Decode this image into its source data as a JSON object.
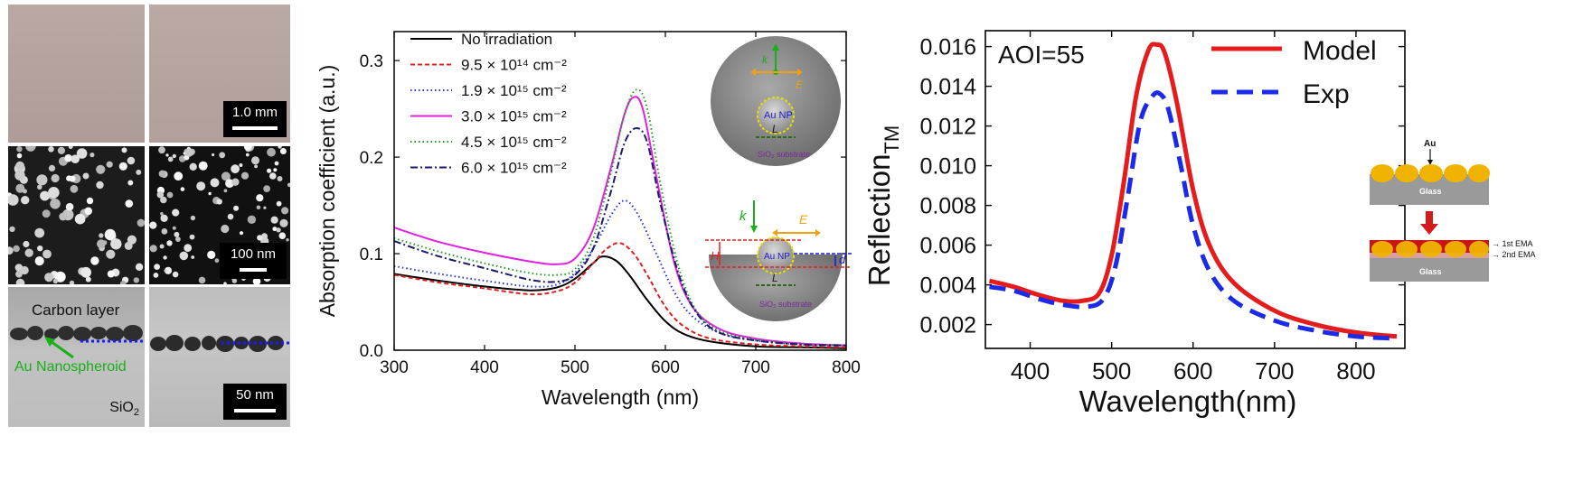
{
  "figure": {
    "panel_a": {
      "scale_bar_1": "1.0 mm",
      "scale_bar_2": "100 nm",
      "scale_bar_3": "50 nm",
      "label_carbon": "Carbon layer",
      "label_au": "Au Nanospheroid",
      "label_sio2": "SiO",
      "label_sio2_sub": "2"
    },
    "panel_b_insets": {
      "top_k": "k",
      "top_e": "E",
      "top_aunp": "Au NP",
      "top_l": "L",
      "top_sub": "SiO₂ substrate",
      "bot_k": "k",
      "bot_e": "E",
      "bot_h": "H",
      "bot_d": "d",
      "bot_aunp": "Au NP",
      "bot_l": "L",
      "bot_sub": "SiO₂ substrate"
    },
    "panel_c_inset": {
      "au": "Au",
      "glass_top": "Glass",
      "glass_bottom": "Glass",
      "ema1": "→ 1st EMA",
      "ema2": "→ 2nd EMA"
    }
  },
  "chart_data": [
    {
      "type": "line",
      "xlabel": "Wavelength (nm)",
      "ylabel": "Absorption coefficient   (a.u.)",
      "xlim": [
        300,
        800
      ],
      "ylim": [
        0,
        0.33
      ],
      "xticks": [
        "300",
        "400",
        "500",
        "600",
        "700",
        "800"
      ],
      "yticks": [
        "0.0",
        "0.1",
        "0.2",
        "0.3"
      ],
      "legend_position": "top-left",
      "series": [
        {
          "name": "No irradiation",
          "color": "#000000",
          "dash": "solid",
          "x": [
            300,
            350,
            400,
            450,
            480,
            500,
            520,
            530,
            545,
            560,
            580,
            600,
            620,
            650,
            700,
            750,
            800
          ],
          "y": [
            0.079,
            0.072,
            0.066,
            0.062,
            0.065,
            0.074,
            0.09,
            0.097,
            0.093,
            0.078,
            0.052,
            0.03,
            0.017,
            0.009,
            0.004,
            0.003,
            0.002
          ]
        },
        {
          "name": "9.5 × 10¹⁴ cm⁻²",
          "color": "#e02020",
          "dash": "dashed",
          "x": [
            300,
            350,
            400,
            450,
            480,
            500,
            520,
            535,
            550,
            565,
            580,
            600,
            620,
            650,
            700,
            750,
            800
          ],
          "y": [
            0.078,
            0.07,
            0.064,
            0.058,
            0.061,
            0.07,
            0.09,
            0.105,
            0.111,
            0.1,
            0.078,
            0.045,
            0.025,
            0.012,
            0.006,
            0.004,
            0.003
          ]
        },
        {
          "name": "1.9 × 10¹⁵ cm⁻²",
          "color": "#2030e0",
          "dash": "dotted",
          "x": [
            300,
            350,
            400,
            450,
            480,
            500,
            520,
            540,
            555,
            570,
            590,
            610,
            630,
            660,
            700,
            750,
            800
          ],
          "y": [
            0.087,
            0.079,
            0.072,
            0.066,
            0.068,
            0.08,
            0.105,
            0.14,
            0.155,
            0.14,
            0.1,
            0.06,
            0.035,
            0.018,
            0.01,
            0.006,
            0.005
          ]
        },
        {
          "name": "3.0 × 10¹⁵ cm⁻²",
          "color": "#e020e0",
          "dash": "solid",
          "x": [
            300,
            350,
            400,
            450,
            480,
            500,
            520,
            540,
            555,
            565,
            575,
            590,
            610,
            630,
            660,
            700,
            750,
            800
          ],
          "y": [
            0.127,
            0.112,
            0.101,
            0.092,
            0.089,
            0.095,
            0.125,
            0.19,
            0.245,
            0.262,
            0.25,
            0.18,
            0.09,
            0.045,
            0.022,
            0.012,
            0.007,
            0.005
          ]
        },
        {
          "name": "4.5 × 10¹⁵ cm⁻²",
          "color": "#1a9a1a",
          "dash": "dotted",
          "x": [
            300,
            350,
            400,
            450,
            480,
            500,
            520,
            540,
            555,
            568,
            580,
            595,
            615,
            635,
            660,
            700,
            750,
            800
          ],
          "y": [
            0.116,
            0.102,
            0.09,
            0.08,
            0.078,
            0.084,
            0.115,
            0.185,
            0.245,
            0.27,
            0.25,
            0.17,
            0.085,
            0.04,
            0.02,
            0.011,
            0.006,
            0.005
          ]
        },
        {
          "name": "6.0 × 10¹⁵ cm⁻²",
          "color": "#1a1a6a",
          "dash": "dashdot",
          "x": [
            300,
            350,
            400,
            450,
            480,
            500,
            520,
            540,
            555,
            568,
            580,
            595,
            615,
            635,
            660,
            700,
            750,
            800
          ],
          "y": [
            0.113,
            0.097,
            0.085,
            0.073,
            0.071,
            0.078,
            0.105,
            0.165,
            0.215,
            0.23,
            0.215,
            0.15,
            0.078,
            0.038,
            0.018,
            0.01,
            0.006,
            0.005
          ]
        }
      ]
    },
    {
      "type": "line",
      "xlabel": "Wavelength(nm)",
      "ylabel": "Reflection",
      "ylabel_sub": "TM",
      "annotation": "AOI=55",
      "xlim": [
        345,
        860
      ],
      "ylim": [
        0.0008,
        0.0168
      ],
      "xticks": [
        "400",
        "500",
        "600",
        "700",
        "800"
      ],
      "yticks": [
        "0.002",
        "0.004",
        "0.006",
        "0.008",
        "0.010",
        "0.012",
        "0.014",
        "0.016"
      ],
      "legend_position": "top-right",
      "series": [
        {
          "name": "Model",
          "color": "#e51c1c",
          "dash": "solid",
          "x": [
            350,
            380,
            410,
            440,
            465,
            485,
            500,
            515,
            530,
            545,
            555,
            565,
            580,
            600,
            620,
            650,
            700,
            750,
            800,
            850
          ],
          "y": [
            0.0042,
            0.0039,
            0.0035,
            0.0032,
            0.0032,
            0.0036,
            0.0055,
            0.0092,
            0.0135,
            0.0158,
            0.0161,
            0.0157,
            0.0132,
            0.0088,
            0.006,
            0.0041,
            0.0027,
            0.002,
            0.0016,
            0.0014
          ]
        },
        {
          "name": "Exp",
          "color": "#1a2ae8",
          "dash": "dashed",
          "x": [
            350,
            380,
            410,
            440,
            470,
            490,
            505,
            520,
            535,
            550,
            560,
            570,
            585,
            600,
            620,
            650,
            700,
            750,
            800,
            850
          ],
          "y": [
            0.0039,
            0.0037,
            0.0033,
            0.003,
            0.0029,
            0.0033,
            0.005,
            0.0085,
            0.0122,
            0.0135,
            0.0136,
            0.0128,
            0.01,
            0.007,
            0.0047,
            0.0032,
            0.0022,
            0.0017,
            0.0014,
            0.0013
          ]
        }
      ]
    }
  ]
}
